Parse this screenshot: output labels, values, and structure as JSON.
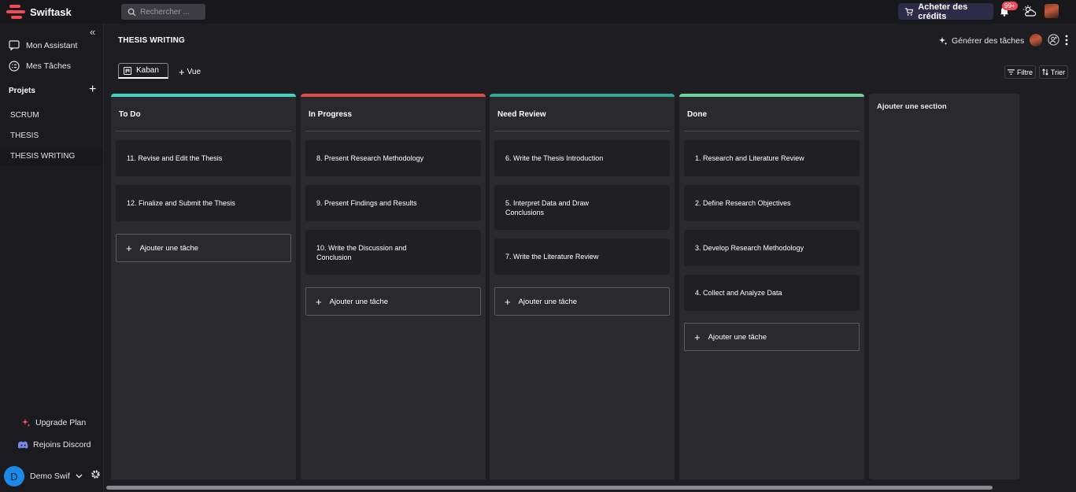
{
  "app": {
    "name": "Swiftask"
  },
  "topbar": {
    "search_placeholder": "Rechercher ...",
    "buy_credits": "Acheter des crédits",
    "notification_count": "99+"
  },
  "sidebar": {
    "nav": [
      {
        "label": "Mon Assistant",
        "icon": "chat-icon"
      },
      {
        "label": "Mes Tâches",
        "icon": "tasks-icon"
      }
    ],
    "projects_label": "Projets",
    "projects": [
      "SCRUM",
      "THESIS",
      "THESIS WRITING"
    ],
    "active_project": "THESIS WRITING",
    "upgrade": "Upgrade Plan",
    "discord": "Rejoins Discord",
    "user": {
      "initial": "D",
      "name": "Demo Swif"
    }
  },
  "header": {
    "title": "THESIS WRITING",
    "generate_tasks": "Générer des tâches",
    "tabs": {
      "kaban": "Kaban",
      "vue": "Vue"
    },
    "filter": "Filtre",
    "sort": "Trier"
  },
  "board": {
    "columns": [
      {
        "title": "To Do",
        "color": "#3dd6c4",
        "cards": [
          "11. Revise and Edit the Thesis",
          "12. Finalize and Submit the Thesis"
        ]
      },
      {
        "title": "In Progress",
        "color": "#e04a4a",
        "cards": [
          "8. Present Research Methodology",
          "9. Present Findings and Results",
          "10. Write the Discussion and Conclusion"
        ]
      },
      {
        "title": "Need Review",
        "color": "#2fa89a",
        "cards": [
          "6. Write the Thesis Introduction",
          "5. Interpret Data and Draw Conclusions",
          "7. Write the Literature Review"
        ]
      },
      {
        "title": "Done",
        "color": "#6fd49a",
        "cards": [
          "1. Research and Literature Review",
          "2. Define Research Objectives",
          "3. Develop Research Methodology",
          "4. Collect and Analyze Data"
        ]
      }
    ],
    "add_task": "Ajouter une tâche",
    "add_section": "Ajouter une section"
  }
}
